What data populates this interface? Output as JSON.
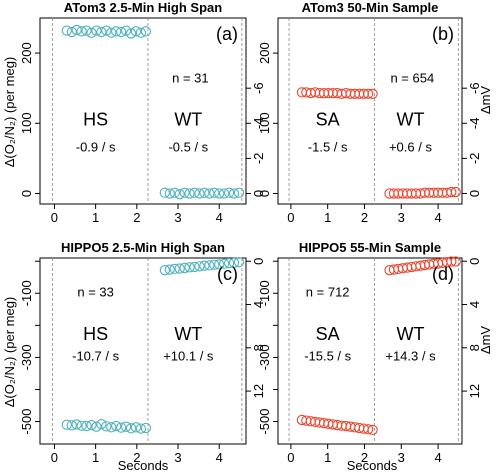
{
  "figure": {
    "shared_xlabel": "Seconds",
    "left_ylabel": "Δ(O₂/N₂) (per meg)",
    "right_ylabel": "ΔmV"
  },
  "colors": {
    "teal": "#4fb2bf",
    "red": "#e8462f",
    "axis": "#000000",
    "divider": "#888888"
  },
  "chart_data": [
    {
      "type": "scatter",
      "title": "ATom3  2.5-Min High Span",
      "panel_letter": "(a)",
      "count_label": "n = 31",
      "color": "teal",
      "xlim": [
        -0.35,
        4.65
      ],
      "ylim": [
        -15,
        250
      ],
      "x_ticks": [
        0,
        1,
        2,
        3,
        4
      ],
      "y_ticks": [
        0,
        100,
        200
      ],
      "y_tick_labels": [
        "0",
        "100",
        "200"
      ],
      "right_ticks": [
        {
          "value": 0,
          "label": "0"
        },
        {
          "value": 50,
          "label": "-2"
        },
        {
          "value": 100,
          "label": "-4"
        },
        {
          "value": 150,
          "label": "-6"
        }
      ],
      "dividers": [
        -0.05,
        2.27,
        4.55
      ],
      "segment_labels": [
        {
          "name": "HS",
          "rate": "-0.9 / s",
          "x": 1.0
        },
        {
          "name": "WT",
          "rate": "-0.5 / s",
          "x": 3.25
        }
      ],
      "name_y": 97,
      "rate_y": 60,
      "count_y": 158,
      "count_x": 3.3,
      "series": [
        {
          "x": [
            0.3,
            0.42,
            0.54,
            0.66,
            0.78,
            0.9,
            1.02,
            1.14,
            1.26,
            1.38,
            1.5,
            1.62,
            1.74,
            1.86,
            1.98,
            2.1,
            2.22
          ],
          "y": [
            232,
            230,
            233,
            231,
            232,
            229,
            232,
            230,
            232,
            229,
            231,
            230,
            232,
            228,
            231,
            229,
            231
          ]
        },
        {
          "x": [
            2.68,
            2.8,
            2.92,
            3.04,
            3.16,
            3.28,
            3.4,
            3.52,
            3.64,
            3.76,
            3.88,
            4.0,
            4.12,
            4.24,
            4.36,
            4.48
          ],
          "y": [
            1,
            0,
            1,
            -1,
            1,
            0,
            1,
            0,
            1,
            0,
            1,
            0,
            0,
            1,
            0,
            1
          ]
        }
      ]
    },
    {
      "type": "scatter",
      "title": "ATom3  50-Min Sample",
      "panel_letter": "(b)",
      "count_label": "n = 654",
      "color": "red",
      "xlim": [
        -0.35,
        4.65
      ],
      "ylim": [
        -15,
        250
      ],
      "x_ticks": [
        0,
        1,
        2,
        3,
        4
      ],
      "y_ticks": [
        0,
        100,
        200
      ],
      "y_tick_labels": [
        "0",
        "100",
        "200"
      ],
      "right_ticks": [
        {
          "value": 0,
          "label": "0"
        },
        {
          "value": 50,
          "label": "-2"
        },
        {
          "value": 100,
          "label": "-4"
        },
        {
          "value": 150,
          "label": "-6"
        }
      ],
      "dividers": [
        -0.05,
        2.27,
        4.55
      ],
      "segment_labels": [
        {
          "name": "SA",
          "rate": "-1.5 / s",
          "x": 1.0
        },
        {
          "name": "WT",
          "rate": "+0.6 / s",
          "x": 3.25
        }
      ],
      "name_y": 97,
      "rate_y": 60,
      "count_y": 158,
      "count_x": 3.3,
      "series": [
        {
          "x": [
            0.3,
            0.42,
            0.54,
            0.66,
            0.78,
            0.9,
            1.02,
            1.14,
            1.26,
            1.38,
            1.5,
            1.62,
            1.74,
            1.86,
            1.98,
            2.1,
            2.22
          ],
          "y": [
            144,
            144,
            143,
            144,
            143,
            143,
            143,
            143,
            143,
            142,
            143,
            142,
            142,
            142,
            142,
            142,
            142
          ]
        },
        {
          "x": [
            2.68,
            2.8,
            2.92,
            3.04,
            3.16,
            3.28,
            3.4,
            3.52,
            3.64,
            3.76,
            3.88,
            4.0,
            4.12,
            4.24,
            4.36,
            4.48
          ],
          "y": [
            0,
            0,
            0,
            0,
            0,
            0,
            0,
            0,
            1,
            1,
            1,
            1,
            1,
            1,
            2,
            2
          ]
        }
      ]
    },
    {
      "type": "scatter",
      "title": "HIPPO5  2.5-Min High Span",
      "panel_letter": "(c)",
      "count_label": "n = 33",
      "color": "teal",
      "xlim": [
        -0.35,
        4.65
      ],
      "ylim": [
        -570,
        10
      ],
      "x_ticks": [
        0,
        1,
        2,
        3,
        4
      ],
      "y_ticks": [
        -500,
        -400,
        -300,
        -200,
        -100,
        0
      ],
      "y_tick_labels": [
        "-500",
        "",
        "-300",
        "",
        "-100",
        ""
      ],
      "right_ticks": [
        {
          "value": 0,
          "label": "0"
        },
        {
          "value": -135,
          "label": "4"
        },
        {
          "value": -270,
          "label": "8"
        },
        {
          "value": -405,
          "label": "12"
        }
      ],
      "dividers": [
        -0.05,
        2.27,
        4.55
      ],
      "segment_labels": [
        {
          "name": "HS",
          "rate": "-10.7 / s",
          "x": 1.0
        },
        {
          "name": "WT",
          "rate": "+10.1 / s",
          "x": 3.25
        }
      ],
      "name_y": -245,
      "rate_y": -310,
      "count_y": -110,
      "count_x": 1.0,
      "series": [
        {
          "x": [
            0.3,
            0.42,
            0.54,
            0.66,
            0.78,
            0.9,
            1.02,
            1.14,
            1.26,
            1.38,
            1.5,
            1.62,
            1.74,
            1.86,
            1.98,
            2.1,
            2.22
          ],
          "y": [
            -510,
            -512,
            -509,
            -513,
            -514,
            -511,
            -516,
            -508,
            -515,
            -518,
            -514,
            -519,
            -516,
            -521,
            -518,
            -522,
            -520
          ]
        },
        {
          "x": [
            2.68,
            2.8,
            2.92,
            3.04,
            3.16,
            3.28,
            3.4,
            3.52,
            3.64,
            3.76,
            3.88,
            4.0,
            4.12,
            4.24,
            4.36,
            4.48
          ],
          "y": [
            -28,
            -26,
            -24,
            -23,
            -21,
            -19,
            -18,
            -16,
            -14,
            -13,
            -11,
            -10,
            -8,
            -6,
            -5,
            -3
          ]
        }
      ]
    },
    {
      "type": "scatter",
      "title": "HIPPO5  55-Min Sample",
      "panel_letter": "(d)",
      "count_label": "n = 712",
      "color": "red",
      "xlim": [
        -0.35,
        4.65
      ],
      "ylim": [
        -570,
        10
      ],
      "x_ticks": [
        0,
        1,
        2,
        3,
        4
      ],
      "y_ticks": [
        -500,
        -400,
        -300,
        -200,
        -100,
        0
      ],
      "y_tick_labels": [
        "-500",
        "",
        "-300",
        "",
        "-100",
        ""
      ],
      "right_ticks": [
        {
          "value": 0,
          "label": "0"
        },
        {
          "value": -135,
          "label": "4"
        },
        {
          "value": -270,
          "label": "8"
        },
        {
          "value": -405,
          "label": "12"
        }
      ],
      "dividers": [
        -0.05,
        2.27,
        4.55
      ],
      "segment_labels": [
        {
          "name": "SA",
          "rate": "-15.5 / s",
          "x": 1.0
        },
        {
          "name": "WT",
          "rate": "+14.3 / s",
          "x": 3.25
        }
      ],
      "name_y": -245,
      "rate_y": -310,
      "count_y": -110,
      "count_x": 1.0,
      "series": [
        {
          "x": [
            0.3,
            0.42,
            0.54,
            0.66,
            0.78,
            0.9,
            1.02,
            1.14,
            1.26,
            1.38,
            1.5,
            1.62,
            1.74,
            1.86,
            1.98,
            2.1,
            2.22
          ],
          "y": [
            -495,
            -497,
            -499,
            -501,
            -503,
            -505,
            -507,
            -509,
            -511,
            -513,
            -514,
            -516,
            -518,
            -520,
            -522,
            -524,
            -526
          ]
        },
        {
          "x": [
            2.68,
            2.8,
            2.92,
            3.04,
            3.16,
            3.28,
            3.4,
            3.52,
            3.64,
            3.76,
            3.88,
            4.0,
            4.12,
            4.24,
            4.36,
            4.48
          ],
          "y": [
            -28,
            -26,
            -24,
            -22,
            -20,
            -18,
            -16,
            -14,
            -12,
            -10,
            -8,
            -7,
            -5,
            -3,
            -1,
            -1
          ]
        }
      ]
    }
  ]
}
